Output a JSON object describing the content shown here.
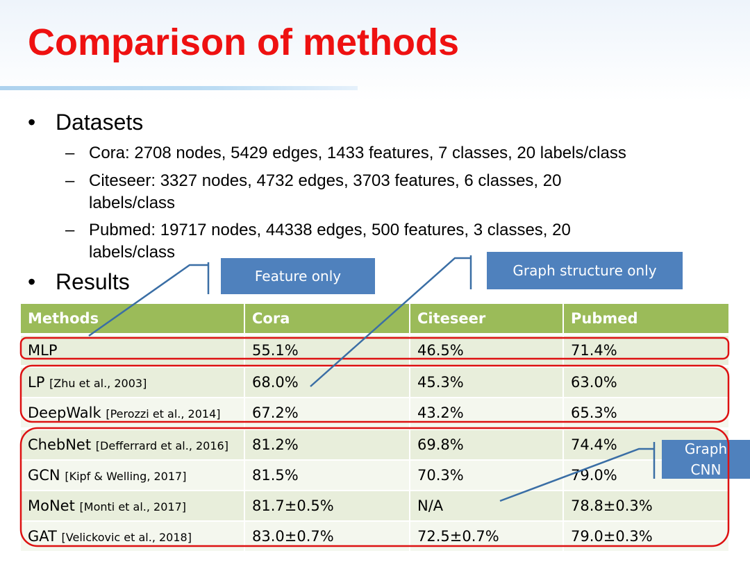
{
  "title": "Comparison of methods",
  "bullets": {
    "datasets": "Datasets",
    "results": "Results",
    "bullet_char": "•",
    "dash_char": "–"
  },
  "datasets": [
    {
      "line1": "Cora: 2708 nodes, 5429 edges, 1433 features, 7 classes, 20 labels/class",
      "line2": ""
    },
    {
      "line1": "Citeseer: 3327 nodes, 4732 edges, 3703 features, 6 classes, 20",
      "line2": "labels/class"
    },
    {
      "line1": "Pubmed: 19717 nodes, 44338 edges, 500 features, 3 classes, 20",
      "line2": "labels/class"
    }
  ],
  "table": {
    "headers": [
      "Methods",
      "Cora",
      "Citeseer",
      "Pubmed"
    ],
    "rows": [
      {
        "method": "MLP",
        "cite": "",
        "cora": "55.1%",
        "citeseer": "46.5%",
        "pubmed": "71.4%"
      },
      {
        "method": "LP",
        "cite": "[Zhu et al., 2003]",
        "cora": "68.0%",
        "citeseer": "45.3%",
        "pubmed": "63.0%"
      },
      {
        "method": "DeepWalk",
        "cite": "[Perozzi et al., 2014]",
        "cora": "67.2%",
        "citeseer": "43.2%",
        "pubmed": "65.3%"
      },
      {
        "method": "ChebNet",
        "cite": "[Defferrard et al., 2016]",
        "cora": "81.2%",
        "citeseer": "69.8%",
        "pubmed": "74.4%"
      },
      {
        "method": "GCN",
        "cite": "[Kipf & Welling, 2017]",
        "cora": "81.5%",
        "citeseer": "70.3%",
        "pubmed": "79.0%"
      },
      {
        "method": "MoNet",
        "cite": "[Monti et al., 2017]",
        "cora": "81.7±0.5%",
        "citeseer": "N/A",
        "pubmed": "78.8±0.3%"
      },
      {
        "method": "GAT",
        "cite": "[Velickovic et al., 2018]",
        "cora": "83.0±0.7%",
        "citeseer": "72.5±0.7%",
        "pubmed": "79.0±0.3%"
      }
    ]
  },
  "callouts": {
    "feature_only": "Feature only",
    "graph_structure_only": "Graph structure only",
    "graph_cnn_line1": "Graph",
    "graph_cnn_line2": "CNN"
  },
  "colors": {
    "title": "#ee1111",
    "header_bg": "#9bbb59",
    "row_odd": "#e8eedb",
    "row_even": "#f4f7ee",
    "callout_bg": "#4f81bd",
    "highlight": "#dd1111",
    "connector": "#3a6ea5"
  }
}
